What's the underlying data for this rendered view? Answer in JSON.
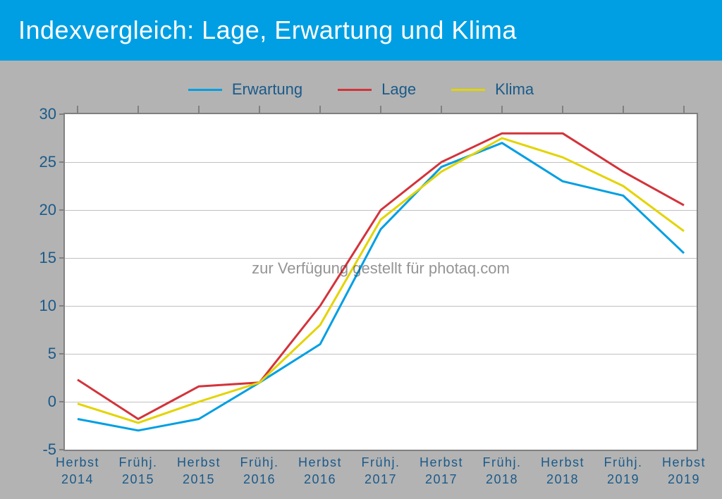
{
  "title": "Indexvergleich: Lage, Erwartung und Klima",
  "watermark": "zur Verfügung gestellt für photaq.com",
  "chart": {
    "type": "line",
    "background_color": "#ffffff",
    "outer_background": "#b3b3b3",
    "title_bar_color": "#009fe3",
    "title_text_color": "#ffffff",
    "axis_label_color": "#1a5a8a",
    "grid_color": "#c0c0c0",
    "border_color": "#808080",
    "line_width": 3,
    "ylim": [
      -5,
      30
    ],
    "yticks": [
      -5,
      0,
      5,
      10,
      15,
      20,
      25,
      30
    ],
    "categories": [
      "Herbst\n2014",
      "Frühj.\n2015",
      "Herbst\n2015",
      "Frühj.\n2016",
      "Herbst\n2016",
      "Frühj.\n2017",
      "Herbst\n2017",
      "Frühj.\n2018",
      "Herbst\n2018",
      "Frühj.\n2019",
      "Herbst\n2019"
    ],
    "series": [
      {
        "name": "Erwartung",
        "color": "#009fe3",
        "values": [
          -1.8,
          -3.0,
          -1.8,
          2.0,
          6.0,
          18.0,
          24.5,
          27.0,
          23.0,
          21.5,
          15.5
        ]
      },
      {
        "name": "Lage",
        "color": "#d3333a",
        "values": [
          2.3,
          -1.8,
          1.6,
          2.0,
          10.0,
          20.0,
          25.0,
          28.0,
          28.0,
          24.0,
          20.5
        ]
      },
      {
        "name": "Klima",
        "color": "#e3d400",
        "values": [
          -0.2,
          -2.2,
          0.0,
          2.0,
          8.0,
          19.0,
          24.0,
          27.5,
          25.5,
          22.5,
          17.8
        ]
      }
    ]
  }
}
